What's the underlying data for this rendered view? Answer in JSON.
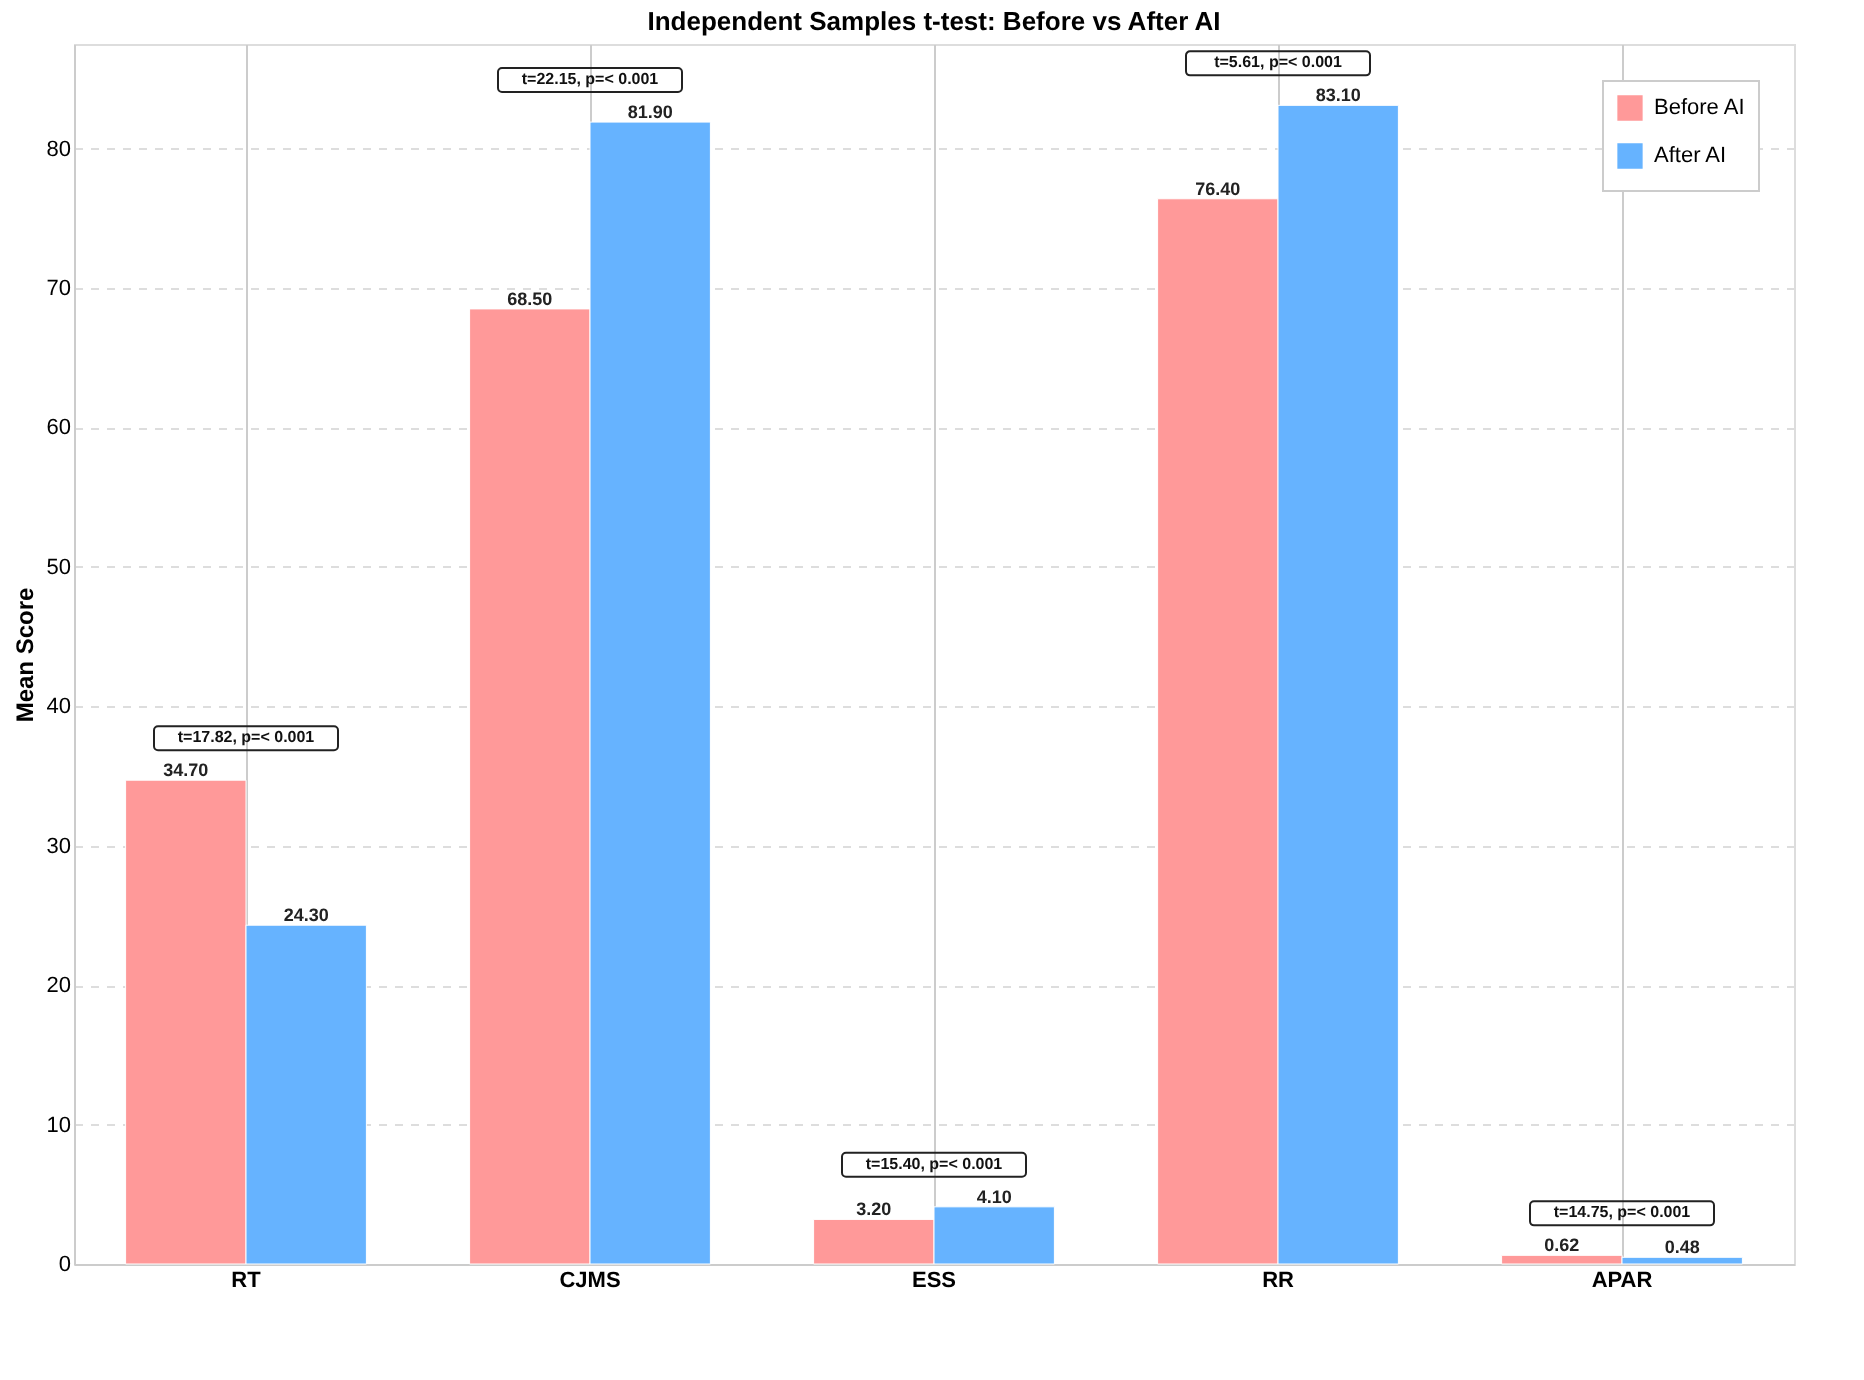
{
  "chart_data": {
    "type": "bar",
    "title": "Independent Samples t-test: Before vs After AI",
    "ylabel": "Mean Score",
    "categories": [
      "RT",
      "CJMS",
      "ESS",
      "RR",
      "APAR"
    ],
    "series": [
      {
        "name": "Before AI",
        "color": "#ff9999",
        "values": [
          34.7,
          68.5,
          3.2,
          76.4,
          0.62
        ],
        "value_labels": [
          "34.70",
          "68.50",
          "3.20",
          "76.40",
          "0.62"
        ]
      },
      {
        "name": "After AI",
        "color": "#66b3ff",
        "values": [
          24.3,
          81.9,
          4.1,
          83.1,
          0.48
        ],
        "value_labels": [
          "24.30",
          "81.90",
          "4.10",
          "83.10",
          "0.48"
        ]
      }
    ],
    "ylim": [
      0,
      87.5
    ],
    "yticks": [
      0,
      10,
      20,
      30,
      40,
      50,
      60,
      70,
      80
    ],
    "grid": true,
    "legend": "top right",
    "annotations": [
      "t=17.82, p=< 0.001",
      "t=22.15, p=< 0.001",
      "t=15.40, p=< 0.001",
      "t=5.61, p=< 0.001",
      "t=14.75, p=< 0.001"
    ]
  }
}
